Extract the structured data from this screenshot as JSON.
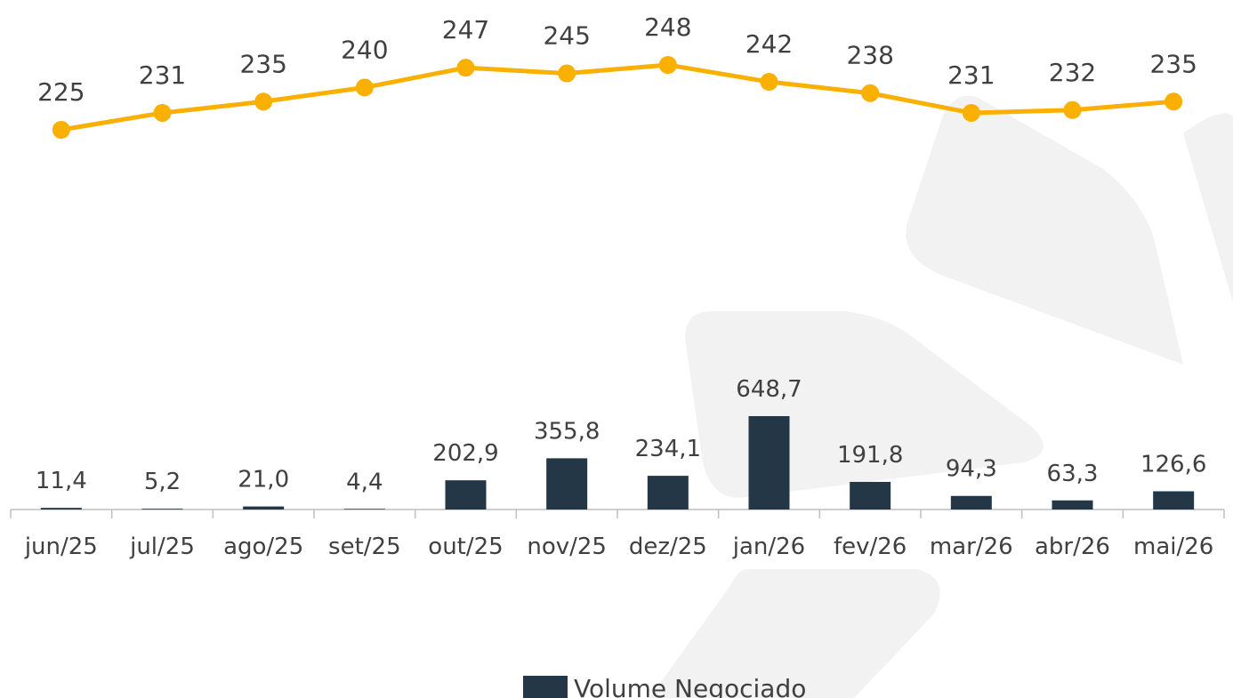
{
  "chart_data": {
    "type": "combo",
    "categories": [
      "jun/25",
      "jul/25",
      "ago/25",
      "set/25",
      "out/25",
      "nov/25",
      "dez/25",
      "jan/26",
      "fev/26",
      "mar/26",
      "abr/26",
      "mai/26"
    ],
    "series": [
      {
        "name": "Volume Negociado",
        "type": "bar",
        "color": "#243746",
        "values": [
          11.4,
          5.2,
          21.0,
          4.4,
          202.9,
          355.8,
          234.1,
          648.7,
          191.8,
          94.3,
          63.3,
          126.6
        ],
        "value_labels": [
          "11,4",
          "5,2",
          "21,0",
          "4,4",
          "202,9",
          "355,8",
          "234,1",
          "648,7",
          "191,8",
          "94,3",
          "63,3",
          "126,6"
        ]
      },
      {
        "type": "line",
        "color": "#f9b000",
        "values": [
          225,
          231,
          235,
          240,
          247,
          245,
          248,
          242,
          238,
          231,
          232,
          235
        ]
      }
    ],
    "legend": "bottom"
  }
}
